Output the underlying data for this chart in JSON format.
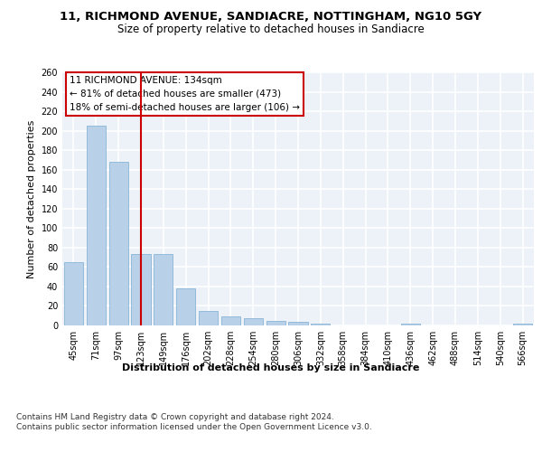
{
  "title": "11, RICHMOND AVENUE, SANDIACRE, NOTTINGHAM, NG10 5GY",
  "subtitle": "Size of property relative to detached houses in Sandiacre",
  "xlabel": "Distribution of detached houses by size in Sandiacre",
  "ylabel": "Number of detached properties",
  "bin_labels": [
    "45sqm",
    "71sqm",
    "97sqm",
    "123sqm",
    "149sqm",
    "176sqm",
    "202sqm",
    "228sqm",
    "254sqm",
    "280sqm",
    "306sqm",
    "332sqm",
    "358sqm",
    "384sqm",
    "410sqm",
    "436sqm",
    "462sqm",
    "488sqm",
    "514sqm",
    "540sqm",
    "566sqm"
  ],
  "bar_values": [
    65,
    205,
    168,
    73,
    73,
    38,
    15,
    9,
    7,
    5,
    4,
    2,
    0,
    0,
    0,
    2,
    0,
    0,
    0,
    0,
    2
  ],
  "bar_color": "#b8d0e8",
  "bar_edgecolor": "#7aabcf",
  "vline_x": 3.0,
  "vline_color": "#cc0000",
  "annotation_text": "11 RICHMOND AVENUE: 134sqm\n← 81% of detached houses are smaller (473)\n18% of semi-detached houses are larger (106) →",
  "annotation_box_color": "#cc0000",
  "annotation_text_color": "#000000",
  "ylim": [
    0,
    260
  ],
  "yticks": [
    0,
    20,
    40,
    60,
    80,
    100,
    120,
    140,
    160,
    180,
    200,
    220,
    240,
    260
  ],
  "footer_text": "Contains HM Land Registry data © Crown copyright and database right 2024.\nContains public sector information licensed under the Open Government Licence v3.0.",
  "bg_color": "#edf2f9",
  "grid_color": "#ffffff",
  "title_fontsize": 9.5,
  "subtitle_fontsize": 8.5,
  "axis_label_fontsize": 8,
  "tick_fontsize": 7,
  "annotation_fontsize": 7.5,
  "footer_fontsize": 6.5
}
